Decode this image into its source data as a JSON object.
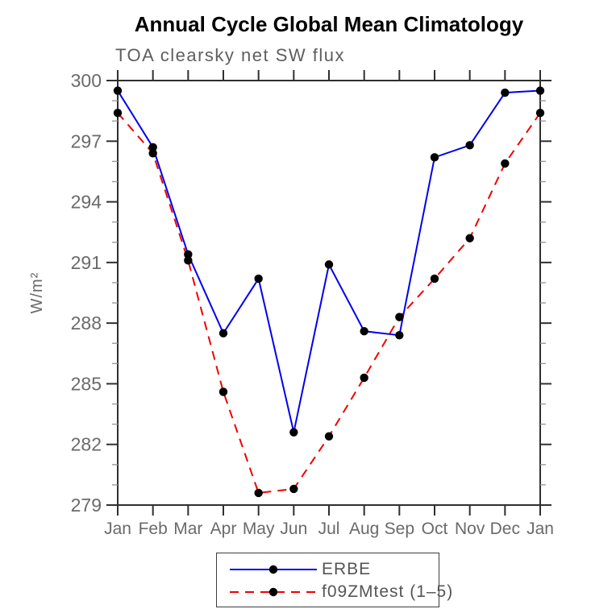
{
  "title": "Annual Cycle Global Mean Climatology",
  "subtitle": "TOA clearsky net SW flux",
  "legend": {
    "entries": [
      {
        "label": "ERBE",
        "line_style": "solid",
        "color": "#0000ee",
        "marker_color": "#000000"
      },
      {
        "label": "f09ZMtest (1–5)",
        "line_style": "dashed",
        "color": "#ee0000",
        "marker_color": "#000000"
      }
    ]
  },
  "colors": {
    "title": "#000000",
    "subtitle": "#5e5e5e",
    "axis": "#2f2f2f",
    "tick_label": "#6a6a6a",
    "minor_tick": "#9b9b9b",
    "marker": "#000000",
    "erbe_line": "#0000ee",
    "f09zmtest_line": "#ee0000",
    "legend_text": "#555555",
    "legend_border": "#3c3c3c"
  },
  "chart_data": {
    "type": "line",
    "title": "Annual Cycle Global Mean Climatology",
    "subtitle": "TOA clearsky net SW flux",
    "xlabel": "",
    "ylabel": "W/m²",
    "categories": [
      "Jan",
      "Feb",
      "Mar",
      "Apr",
      "May",
      "Jun",
      "Jul",
      "Aug",
      "Sep",
      "Oct",
      "Nov",
      "Dec",
      "Jan"
    ],
    "ylim": [
      279,
      300
    ],
    "yticks_major": [
      279,
      282,
      285,
      288,
      291,
      294,
      297,
      300
    ],
    "ytick_minor_step": 1,
    "grid": false,
    "marker": "filled-circle",
    "legend_position": "bottom-center",
    "series": [
      {
        "name": "ERBE",
        "color": "#0000ee",
        "line_style": "solid",
        "values": [
          299.5,
          296.7,
          291.4,
          287.5,
          290.2,
          282.6,
          290.9,
          287.6,
          287.4,
          296.2,
          296.8,
          299.4,
          299.5
        ]
      },
      {
        "name": "f09ZMtest (1–5)",
        "color": "#ee0000",
        "line_style": "dashed",
        "values": [
          298.4,
          296.4,
          291.1,
          284.6,
          279.6,
          279.8,
          282.4,
          285.3,
          288.3,
          290.2,
          292.2,
          295.9,
          298.4
        ]
      }
    ]
  }
}
